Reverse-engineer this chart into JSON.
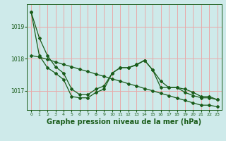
{
  "background_color": "#ceeaea",
  "grid_color": "#e8aaaa",
  "line_color": "#1a5c1a",
  "marker": "D",
  "markersize": 2.0,
  "linewidth": 0.9,
  "title": "Graphe pression niveau de la mer (hPa)",
  "title_fontsize": 7,
  "title_bold": true,
  "xlim": [
    -0.5,
    23.5
  ],
  "ylim": [
    1016.4,
    1019.7
  ],
  "yticks": [
    1017,
    1018,
    1019
  ],
  "xticks": [
    0,
    1,
    2,
    3,
    4,
    5,
    6,
    7,
    8,
    9,
    10,
    11,
    12,
    13,
    14,
    15,
    16,
    17,
    18,
    19,
    20,
    21,
    22,
    23
  ],
  "series1": [
    1019.45,
    1018.65,
    1018.1,
    1017.75,
    1017.55,
    1017.05,
    1016.88,
    1016.88,
    1017.05,
    1017.15,
    1017.55,
    1017.72,
    1017.72,
    1017.8,
    1017.95,
    1017.65,
    1017.3,
    1017.1,
    1017.1,
    1017.05,
    1016.95,
    1016.82,
    1016.82,
    1016.72
  ],
  "series2": [
    1019.45,
    1018.1,
    1017.72,
    1017.55,
    1017.35,
    1016.82,
    1016.78,
    1016.78,
    1016.95,
    1017.05,
    1017.55,
    1017.72,
    1017.72,
    1017.82,
    1017.95,
    1017.65,
    1017.1,
    1017.1,
    1017.1,
    1016.95,
    1016.85,
    1016.78,
    1016.78,
    1016.72
  ],
  "series3": [
    1018.1,
    1018.05,
    1017.98,
    1017.9,
    1017.82,
    1017.75,
    1017.67,
    1017.6,
    1017.52,
    1017.45,
    1017.37,
    1017.3,
    1017.22,
    1017.15,
    1017.07,
    1017.0,
    1016.92,
    1016.85,
    1016.77,
    1016.7,
    1016.62,
    1016.55,
    1016.55,
    1016.5
  ]
}
